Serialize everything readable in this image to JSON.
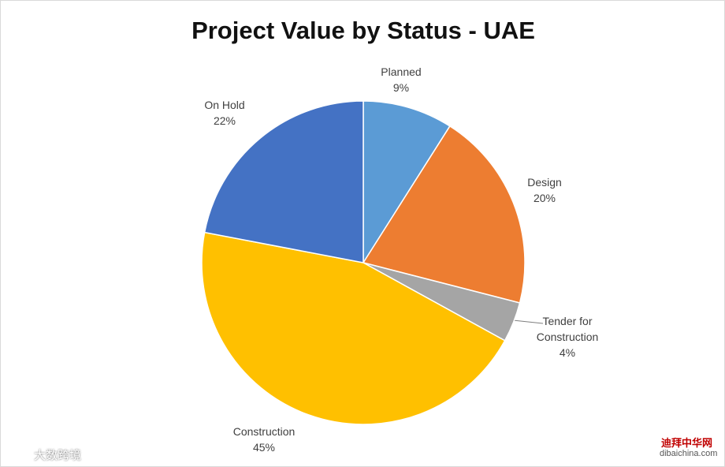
{
  "chart_data": {
    "type": "pie",
    "title": "Project Value by Status - UAE",
    "categories": [
      "Planned",
      "Design",
      "Tender for Construction",
      "Construction",
      "On Hold"
    ],
    "values": [
      9,
      20,
      4,
      45,
      22
    ],
    "value_labels": [
      "9%",
      "20%",
      "4%",
      "45%",
      "22%"
    ],
    "colors": [
      "#5b9bd5",
      "#ed7d31",
      "#a5a5a5",
      "#ffc000",
      "#4472c4"
    ]
  },
  "watermarks": [
    "大数跨境",
    "迪拜中华网",
    "dibaichina.com"
  ]
}
